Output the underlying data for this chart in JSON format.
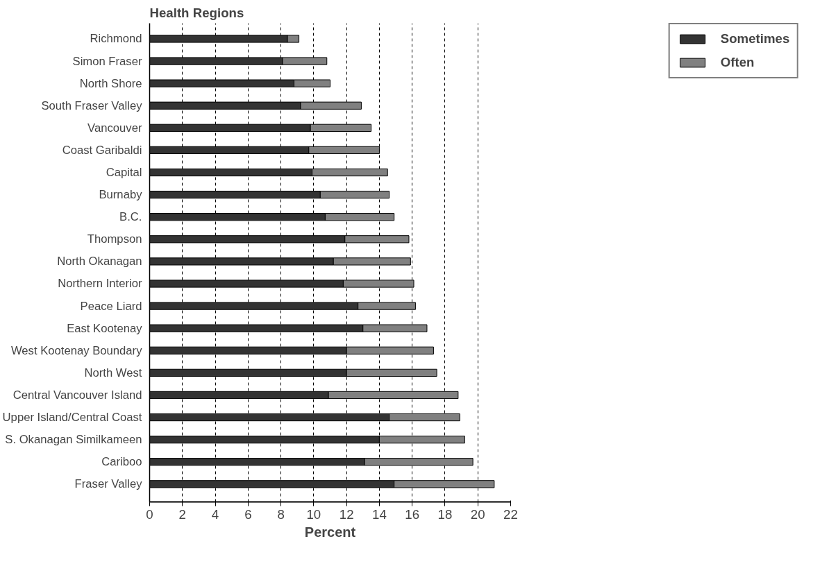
{
  "chart_data": {
    "type": "bar",
    "orientation": "horizontal",
    "stacked": true,
    "ylabel": "Health Regions",
    "xlabel": "Percent",
    "categories": [
      "Richmond",
      "Simon Fraser",
      "North Shore",
      "South Fraser Valley",
      "Vancouver",
      "Coast Garibaldi",
      "Capital",
      "Burnaby",
      "B.C.",
      "Thompson",
      "North Okanagan",
      "Northern Interior",
      "Peace Liard",
      "East Kootenay",
      "West Kootenay Boundary",
      "North West",
      "Central Vancouver Island",
      "Upper Island/Central Coast",
      "S. Okanagan Similkameen",
      "Cariboo",
      "Fraser Valley"
    ],
    "series": [
      {
        "name": "Sometimes",
        "color": "#333333",
        "values": [
          8.4,
          8.1,
          8.8,
          9.2,
          9.8,
          9.7,
          9.9,
          10.4,
          10.7,
          11.9,
          11.2,
          11.8,
          12.7,
          13.0,
          12.0,
          12.0,
          10.9,
          14.6,
          14.0,
          13.1,
          14.9
        ]
      },
      {
        "name": "Often",
        "color": "#808080",
        "values": [
          0.7,
          2.7,
          2.2,
          3.7,
          3.7,
          4.3,
          4.6,
          4.2,
          4.2,
          3.9,
          4.7,
          4.3,
          3.5,
          3.9,
          5.3,
          5.5,
          7.9,
          4.3,
          5.2,
          6.6,
          6.1
        ]
      }
    ],
    "xlim": [
      0,
      22
    ],
    "xticks": [
      0,
      2,
      4,
      6,
      8,
      10,
      12,
      14,
      16,
      18,
      20,
      22
    ],
    "grid": "x",
    "legend": "top right"
  }
}
